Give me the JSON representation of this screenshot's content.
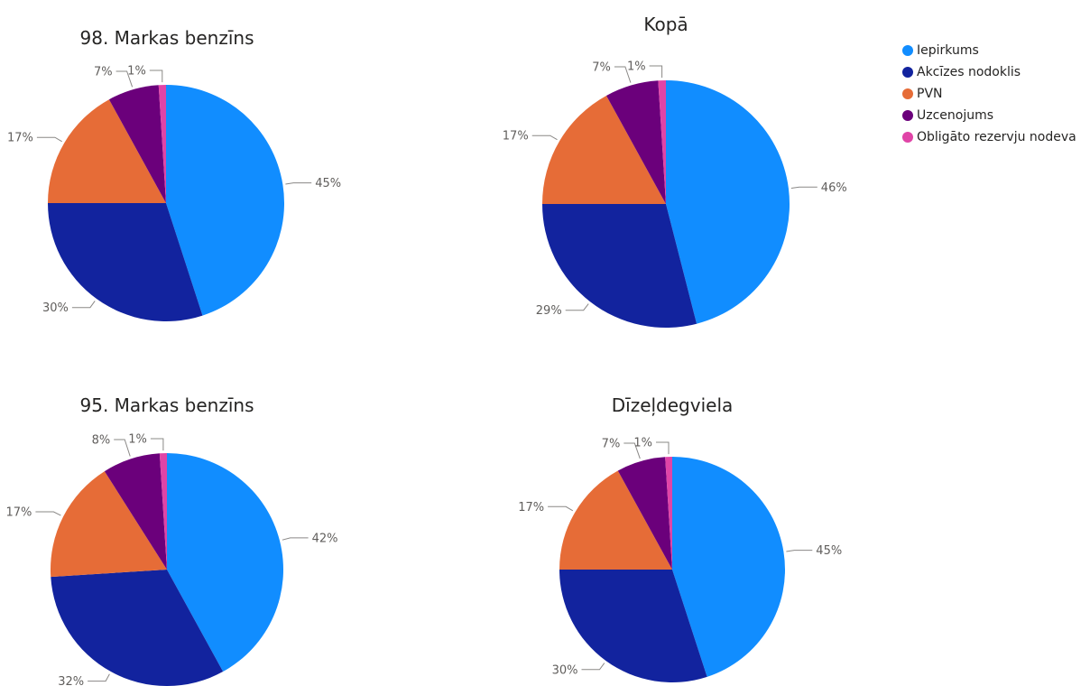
{
  "legend": [
    {
      "label": "Iepirkums",
      "color": "#118DFF"
    },
    {
      "label": "Akcīzes nodoklis",
      "color": "#12239E"
    },
    {
      "label": "PVN",
      "color": "#E66C37"
    },
    {
      "label": "Uzcenojums",
      "color": "#6B007B"
    },
    {
      "label": "Obligāto rezervju nodeva",
      "color": "#E044A7"
    }
  ],
  "chart_data": [
    {
      "type": "pie",
      "title": "98. Markas benzīns",
      "categories": [
        "Iepirkums",
        "Akcīzes nodoklis",
        "PVN",
        "Uzcenojums",
        "Obligāto rezervju nodeva"
      ],
      "values": [
        45,
        30,
        17,
        7,
        1
      ],
      "labels": [
        "45%",
        "30%",
        "17%",
        "7%",
        "1%"
      ]
    },
    {
      "type": "pie",
      "title": "Kopā",
      "categories": [
        "Iepirkums",
        "Akcīzes nodoklis",
        "PVN",
        "Uzcenojums",
        "Obligāto rezervju nodeva"
      ],
      "values": [
        46,
        29,
        17,
        7,
        1
      ],
      "labels": [
        "46%",
        "29%",
        "17%",
        "7%",
        "1%"
      ]
    },
    {
      "type": "pie",
      "title": "95. Markas benzīns",
      "categories": [
        "Iepirkums",
        "Akcīzes nodoklis",
        "PVN",
        "Uzcenojums",
        "Obligāto rezervju nodeva"
      ],
      "values": [
        42,
        32,
        17,
        8,
        1
      ],
      "labels": [
        "42%",
        "32%",
        "17%",
        "8%",
        "1%"
      ]
    },
    {
      "type": "pie",
      "title": "Dīzeļdegviela",
      "categories": [
        "Iepirkums",
        "Akcīzes nodoklis",
        "PVN",
        "Uzcenojums",
        "Obligāto rezervju nodeva"
      ],
      "values": [
        45,
        30,
        17,
        7,
        1
      ],
      "labels": [
        "45%",
        "30%",
        "17%",
        "7%",
        "1%"
      ]
    }
  ]
}
